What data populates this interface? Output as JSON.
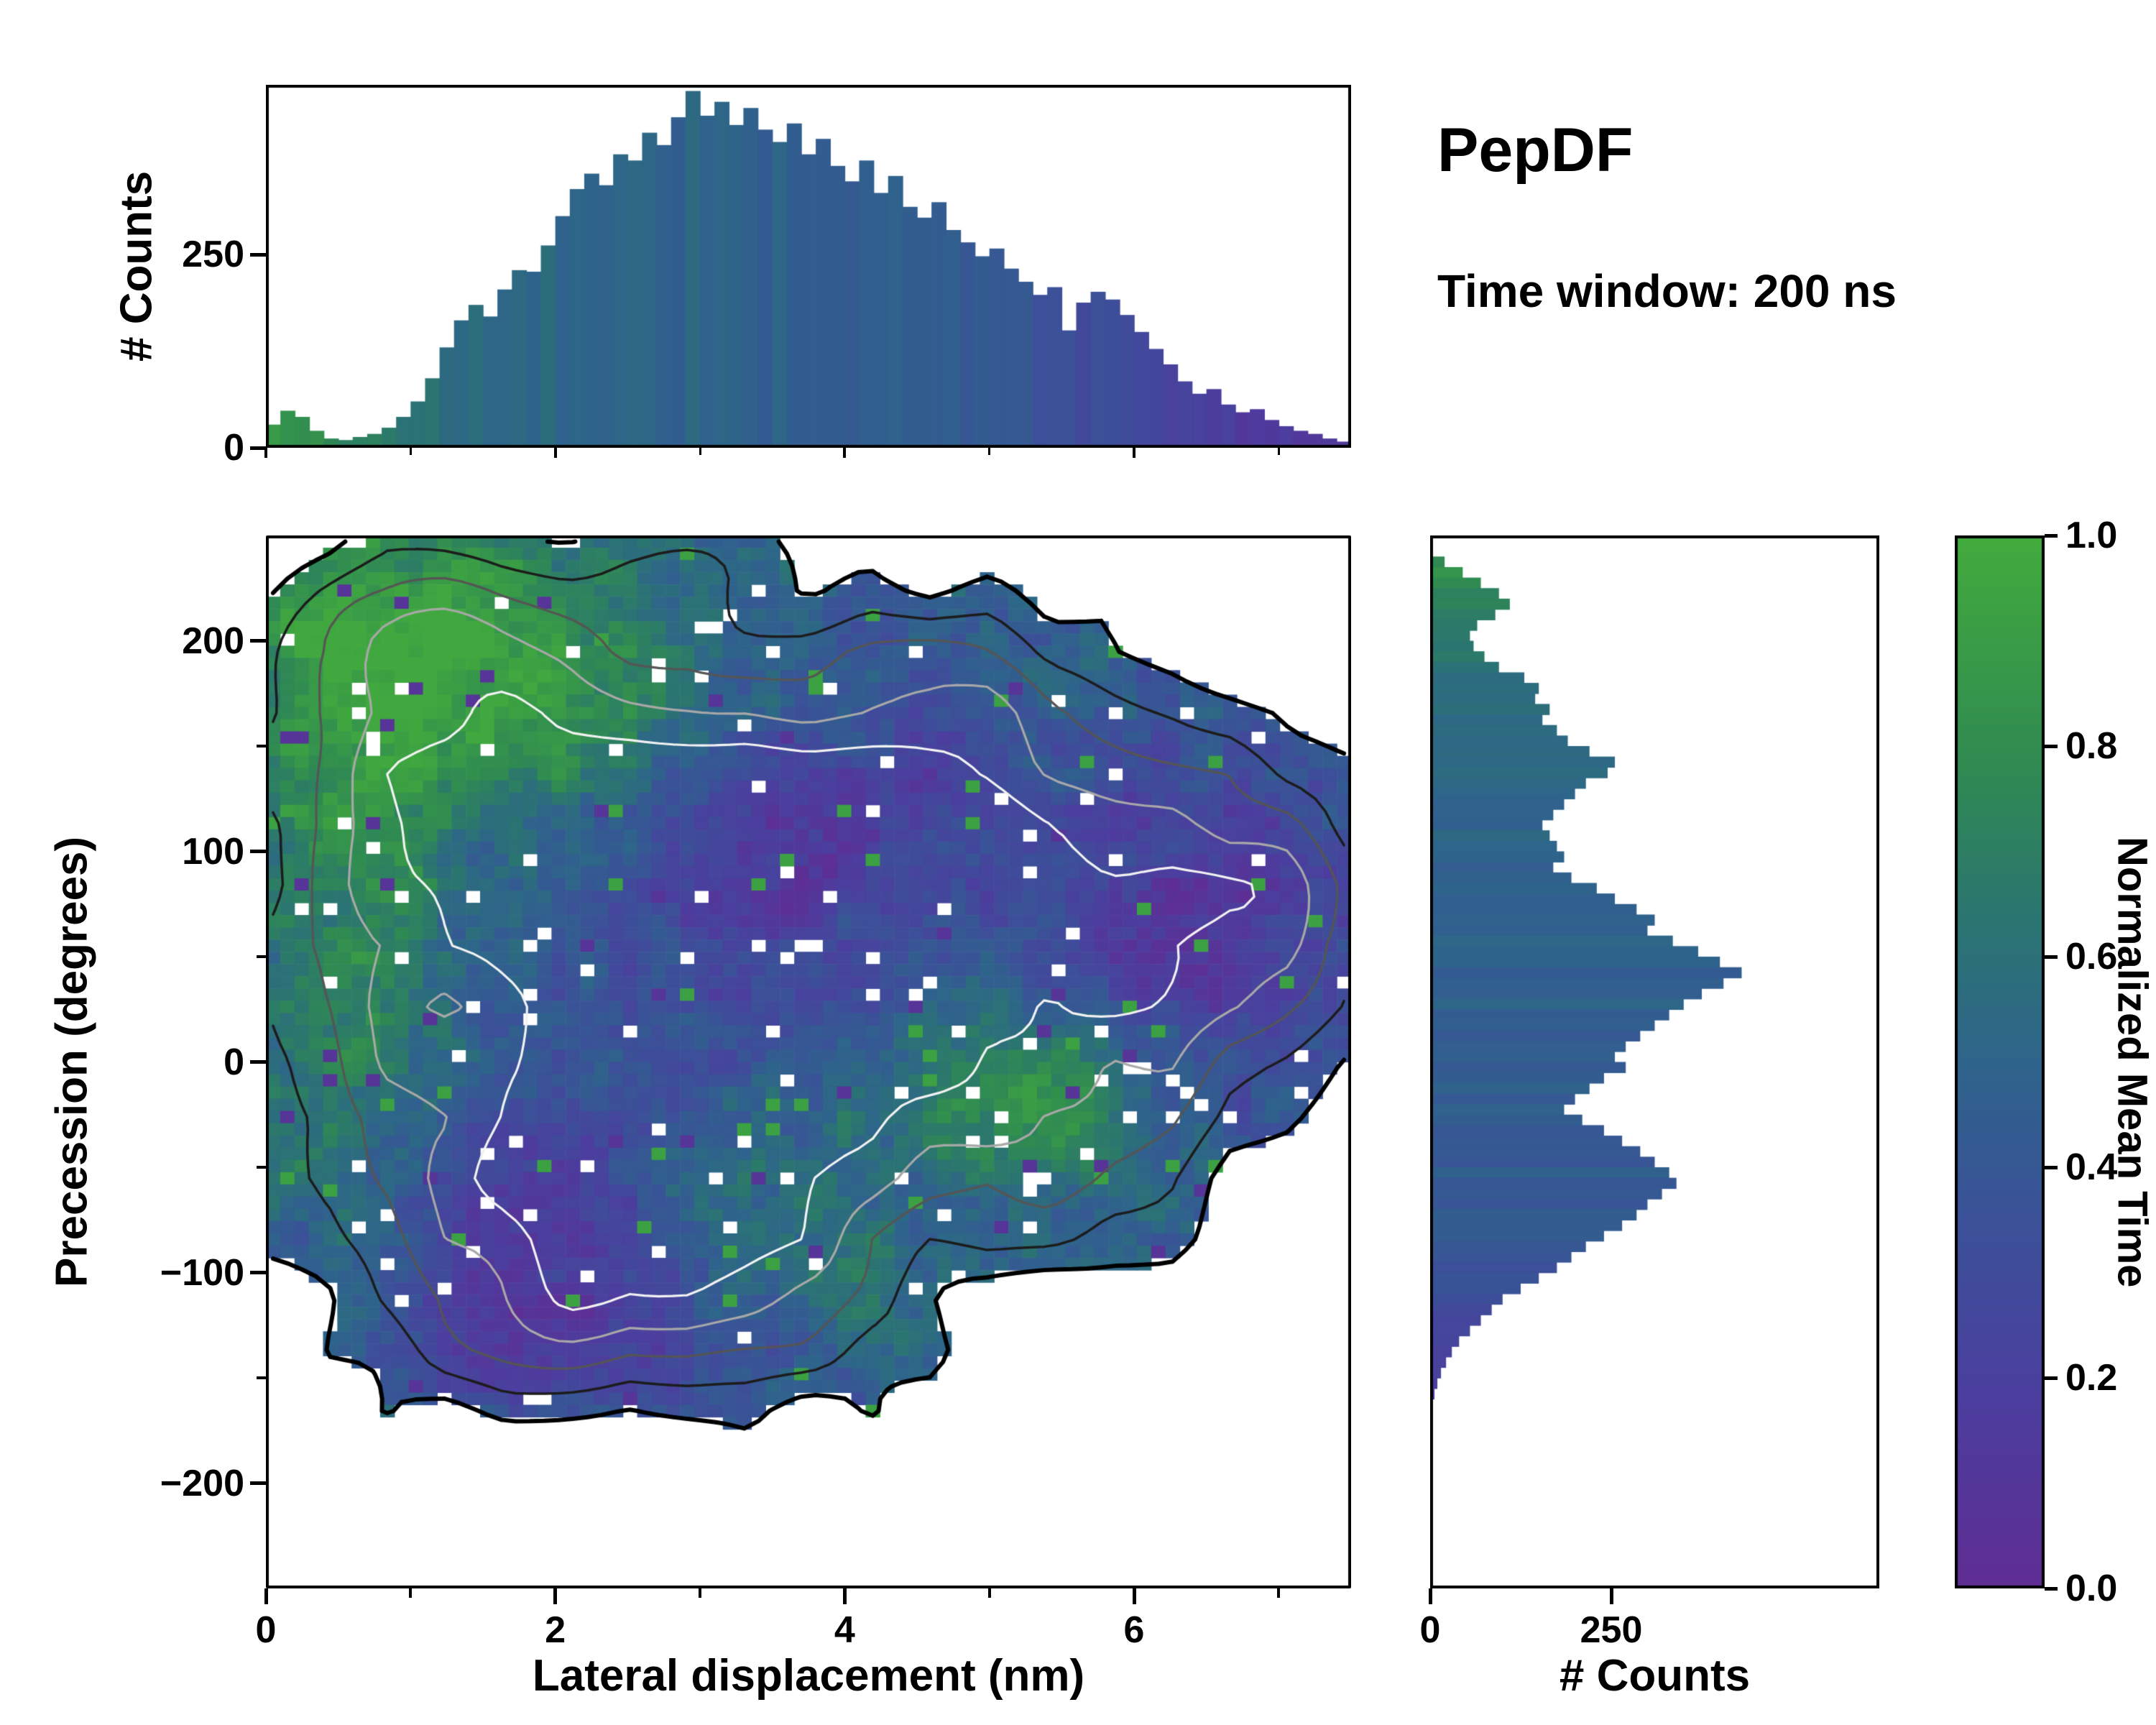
{
  "annotation": {
    "title": "PepDF",
    "subtitle": "Time window: 200 ns"
  },
  "chart_data": [
    {
      "type": "heatmap",
      "name": "joint-distribution-precession-vs-lateral-displacement",
      "title": "",
      "xlabel": "Lateral displacement (nm)",
      "ylabel": "Precession (degrees)",
      "xlim": [
        0,
        7.5
      ],
      "ylim": [
        -250,
        250
      ],
      "xticks": [
        {
          "v": 0,
          "label": "0"
        },
        {
          "v": 2,
          "label": "2"
        },
        {
          "v": 4,
          "label": "4"
        },
        {
          "v": 6,
          "label": "6"
        }
      ],
      "xminor": [
        1,
        3,
        5,
        7
      ],
      "yticks": [
        {
          "v": -200,
          "label": "−200"
        },
        {
          "v": -100,
          "label": "−100"
        },
        {
          "v": 0,
          "label": "0"
        },
        {
          "v": 100,
          "label": "100"
        },
        {
          "v": 200,
          "label": "200"
        }
      ],
      "yminor": [
        -150,
        -50,
        50,
        150
      ],
      "colorbar": {
        "label": "Normalized Mean Time",
        "range": [
          0.0,
          1.0
        ],
        "ticks": [
          {
            "v": 0,
            "label": "0.0"
          },
          {
            "v": 0.2,
            "label": "0.2"
          },
          {
            "v": 0.4,
            "label": "0.4"
          },
          {
            "v": 0.6,
            "label": "0.6"
          },
          {
            "v": 0.8,
            "label": "0.8"
          },
          {
            "v": 1,
            "label": "1.0"
          }
        ]
      },
      "colormap_stops": [
        [
          0,
          "#5f2d93"
        ],
        [
          0.18,
          "#4b3e9e"
        ],
        [
          0.35,
          "#3b5198"
        ],
        [
          0.5,
          "#2e648b"
        ],
        [
          0.63,
          "#2b7472"
        ],
        [
          0.78,
          "#2f8a52"
        ],
        [
          1,
          "#42ab3c"
        ]
      ],
      "grid": {
        "nx": 76,
        "ny": 86
      },
      "seed": 1337,
      "density_blobs": [
        [
          3.1,
          40,
          1.35,
          75,
          1.0
        ],
        [
          2.5,
          -60,
          1.0,
          48,
          0.8
        ],
        [
          1.5,
          140,
          1.0,
          55,
          0.6
        ],
        [
          4.5,
          100,
          1.3,
          55,
          0.55
        ],
        [
          1.0,
          205,
          0.75,
          28,
          0.42
        ],
        [
          6.2,
          55,
          1.0,
          55,
          0.45
        ],
        [
          2.1,
          -130,
          0.9,
          28,
          0.32
        ],
        [
          5.5,
          -30,
          0.8,
          45,
          0.35
        ],
        [
          0.6,
          20,
          0.5,
          90,
          0.3
        ],
        [
          6.9,
          80,
          0.6,
          40,
          0.3
        ],
        [
          4.8,
          175,
          0.9,
          35,
          0.3
        ],
        [
          3.9,
          -110,
          0.5,
          30,
          0.22
        ],
        [
          3.0,
          235,
          0.5,
          20,
          0.22
        ]
      ],
      "meantime_base": 0.47,
      "meantime_blobs": [
        [
          1.2,
          205,
          1.1,
          45,
          0.4
        ],
        [
          0.55,
          60,
          0.45,
          110,
          0.28
        ],
        [
          1.6,
          150,
          0.8,
          40,
          0.2
        ],
        [
          5.35,
          -15,
          0.55,
          28,
          0.38
        ],
        [
          3.6,
          -85,
          0.9,
          40,
          0.18
        ],
        [
          6.5,
          65,
          0.9,
          50,
          -0.38
        ],
        [
          2.1,
          -125,
          1.0,
          40,
          -0.32
        ],
        [
          3.4,
          95,
          0.8,
          35,
          -0.2
        ],
        [
          1.9,
          -45,
          0.6,
          35,
          -0.22
        ],
        [
          4.3,
          130,
          0.8,
          35,
          -0.18
        ],
        [
          3.2,
          55,
          0.7,
          45,
          -0.15
        ]
      ],
      "noise": {
        "amp_density": 0.1,
        "amp_meantime": 0.12,
        "cell_jitter": 0.16
      },
      "occupancy_threshold": 0.16,
      "hole_fraction": 0.025,
      "speckle": {
        "green_p": 0.012,
        "purple_p": 0.012
      },
      "contours": {
        "levels": [
          0.16,
          0.3,
          0.45,
          0.62,
          0.8
        ],
        "colors": [
          "#000000",
          "#1c1c1c",
          "#555555",
          "#a8a8a8",
          "#f2f2f2"
        ],
        "widths": [
          6,
          3.5,
          3.2,
          3.2,
          3.2
        ]
      }
    },
    {
      "type": "bar",
      "name": "top-marginal-histogram",
      "orientation": "vertical",
      "ylabel": "# Counts",
      "xlim": [
        0,
        7.5
      ],
      "ylim": [
        0,
        470
      ],
      "yticks": [
        {
          "v": 0,
          "label": "0"
        },
        {
          "v": 250,
          "label": "250"
        }
      ],
      "bin_start": 0.0,
      "bin_width": 0.1,
      "values": [
        30,
        48,
        40,
        22,
        12,
        10,
        14,
        18,
        26,
        40,
        60,
        90,
        130,
        165,
        185,
        170,
        205,
        230,
        228,
        262,
        300,
        335,
        355,
        340,
        380,
        372,
        408,
        392,
        428,
        462,
        430,
        448,
        418,
        440,
        412,
        396,
        420,
        380,
        400,
        365,
        345,
        372,
        330,
        352,
        312,
        298,
        318,
        282,
        266,
        248,
        258,
        232,
        215,
        198,
        208,
        152,
        188,
        202,
        192,
        172,
        150,
        128,
        108,
        86,
        70,
        76,
        56,
        46,
        50,
        36,
        28,
        22,
        18,
        12,
        8
      ],
      "tint_stops": [
        [
          0,
          0.88
        ],
        [
          0.6,
          0.72
        ],
        [
          1.2,
          0.58
        ],
        [
          2.0,
          0.52
        ],
        [
          3.5,
          0.48
        ],
        [
          4.8,
          0.42
        ],
        [
          5.6,
          0.32
        ],
        [
          6.3,
          0.2
        ],
        [
          7.5,
          0.08
        ]
      ]
    },
    {
      "type": "bar",
      "name": "right-marginal-histogram",
      "orientation": "horizontal",
      "xlabel": "# Counts",
      "xlim": [
        0,
        620
      ],
      "ylim": [
        -250,
        250
      ],
      "xticks": [
        {
          "v": 0,
          "label": "0"
        },
        {
          "v": 250,
          "label": "250"
        }
      ],
      "bin_top": 240,
      "bin_width": 5,
      "values": [
        20,
        45,
        70,
        95,
        110,
        90,
        65,
        55,
        60,
        75,
        95,
        130,
        150,
        145,
        165,
        155,
        175,
        190,
        220,
        255,
        245,
        215,
        200,
        185,
        170,
        155,
        165,
        175,
        185,
        170,
        195,
        230,
        255,
        285,
        310,
        300,
        335,
        370,
        400,
        430,
        405,
        375,
        350,
        330,
        310,
        290,
        270,
        255,
        270,
        240,
        220,
        200,
        185,
        210,
        240,
        265,
        290,
        310,
        330,
        340,
        320,
        300,
        285,
        265,
        240,
        215,
        195,
        175,
        150,
        125,
        100,
        85,
        70,
        55,
        40,
        30,
        22,
        15,
        10,
        6,
        3,
        2
      ],
      "tint_stops": [
        [
          -170,
          0.08
        ],
        [
          -135,
          0.22
        ],
        [
          -105,
          0.36
        ],
        [
          -70,
          0.42
        ],
        [
          -20,
          0.45
        ],
        [
          40,
          0.47
        ],
        [
          120,
          0.5
        ],
        [
          175,
          0.55
        ],
        [
          205,
          0.7
        ],
        [
          240,
          0.82
        ]
      ]
    }
  ]
}
